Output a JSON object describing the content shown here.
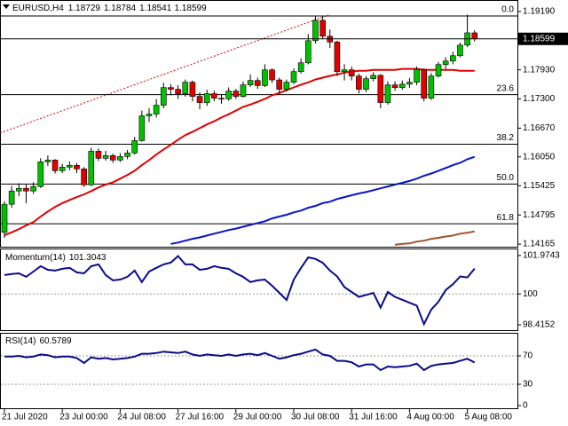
{
  "chart_data": [
    {
      "type": "candlestick",
      "title": "EURUSD,H4",
      "categories": [
        "21 Jul 2020",
        null,
        null,
        null,
        null,
        null,
        null,
        null,
        "23 Jul 00:00",
        null,
        null,
        null,
        null,
        null,
        null,
        null,
        "24 Jul 08:00",
        null,
        null,
        null,
        null,
        null,
        null,
        null,
        "27 Jul 16:00",
        null,
        null,
        null,
        null,
        null,
        null,
        null,
        "29 Jul 00:00",
        null,
        null,
        null,
        null,
        null,
        null,
        null,
        "30 Jul 08:00",
        null,
        null,
        null,
        null,
        null,
        null,
        null,
        "31 Jul 16:00",
        null,
        null,
        null,
        null,
        null,
        null,
        null,
        "4 Aug 00:00",
        null,
        null,
        null,
        null,
        null,
        null,
        null,
        "5 Aug 08:00",
        null
      ],
      "open": [
        1.1442,
        1.15026,
        1.15313,
        1.1537,
        1.15313,
        1.15409,
        1.15943,
        1.15981,
        1.15752,
        1.15828,
        1.15867,
        1.1579,
        1.15446,
        1.16172,
        1.16019,
        1.16077,
        1.15981,
        1.16058,
        1.16134,
        1.16401,
        1.16936,
        1.16974,
        1.17165,
        1.17547,
        1.17509,
        1.17414,
        1.17662,
        1.17356,
        1.17223,
        1.17414,
        1.17318,
        1.17305,
        1.17471,
        1.17356,
        1.17605,
        1.177,
        1.1759,
        1.17929,
        1.17712,
        1.17509,
        1.17662,
        1.17891,
        1.18082,
        1.1856,
        1.18999,
        1.18655,
        1.1853,
        1.17891,
        1.17929,
        1.17796,
        1.17509,
        1.17738,
        1.1781,
        1.17223,
        1.17605,
        1.17547,
        1.1762,
        1.17662,
        1.1794,
        1.17318,
        1.17796,
        1.18044,
        1.1812,
        1.18235,
        1.18464,
        1.18729
      ],
      "high": [
        1.1509,
        1.1542,
        1.1548,
        1.1545,
        1.155,
        1.1602,
        1.1608,
        1.16,
        1.159,
        1.1595,
        1.1592,
        1.1583,
        1.1625,
        1.1623,
        1.1618,
        1.1612,
        1.1613,
        1.162,
        1.1648,
        1.1705,
        1.171,
        1.173,
        1.1765,
        1.1762,
        1.176,
        1.1772,
        1.177,
        1.1745,
        1.175,
        1.1748,
        1.174,
        1.1755,
        1.1752,
        1.1768,
        1.1783,
        1.1776,
        1.1805,
        1.1796,
        1.1776,
        1.1772,
        1.1796,
        1.1818,
        1.187,
        1.19094,
        1.1908,
        1.188,
        1.1856,
        1.1805,
        1.18,
        1.1785,
        1.178,
        1.1788,
        1.1784,
        1.1768,
        1.1768,
        1.177,
        1.1775,
        1.18,
        1.1796,
        1.1786,
        1.181,
        1.182,
        1.1832,
        1.1852,
        1.1912,
        1.18784
      ],
      "low": [
        1.143,
        1.1495,
        1.152,
        1.1505,
        1.1525,
        1.1538,
        1.1585,
        1.1569,
        1.157,
        1.1576,
        1.157,
        1.154,
        1.1542,
        1.1596,
        1.1597,
        1.1592,
        1.1594,
        1.16,
        1.161,
        1.1638,
        1.168,
        1.169,
        1.171,
        1.1738,
        1.173,
        1.1735,
        1.1725,
        1.1708,
        1.1715,
        1.1725,
        1.172,
        1.1726,
        1.173,
        1.1733,
        1.1756,
        1.1752,
        1.1756,
        1.1765,
        1.1742,
        1.1746,
        1.1762,
        1.1785,
        1.1805,
        1.185,
        1.186,
        1.184,
        1.178,
        1.177,
        1.177,
        1.1742,
        1.1745,
        1.1768,
        1.171,
        1.1718,
        1.1748,
        1.175,
        1.1754,
        1.176,
        1.1725,
        1.1728,
        1.1776,
        1.1795,
        1.1805,
        1.182,
        1.1842,
        1.18541
      ],
      "close": [
        1.15026,
        1.15313,
        1.1537,
        1.15313,
        1.15409,
        1.15943,
        1.15981,
        1.15752,
        1.15828,
        1.15867,
        1.1579,
        1.15446,
        1.16172,
        1.16019,
        1.16077,
        1.15981,
        1.16058,
        1.16134,
        1.16401,
        1.16936,
        1.16974,
        1.17165,
        1.17547,
        1.17509,
        1.17414,
        1.17662,
        1.17356,
        1.17223,
        1.17414,
        1.17318,
        1.17305,
        1.17471,
        1.17356,
        1.17605,
        1.177,
        1.1759,
        1.17929,
        1.17712,
        1.17509,
        1.17662,
        1.17891,
        1.18082,
        1.1856,
        1.18999,
        1.18655,
        1.1853,
        1.17891,
        1.17929,
        1.17796,
        1.17509,
        1.17738,
        1.1781,
        1.17223,
        1.17605,
        1.17547,
        1.1762,
        1.17662,
        1.1794,
        1.17318,
        1.17796,
        1.18044,
        1.1812,
        1.18235,
        1.18464,
        1.18729,
        1.18599
      ],
      "bull_color": "#00c000",
      "bear_color": "#e00000",
      "wick_color": "#000000",
      "series": [
        {
          "color": "#e00000",
          "values": [
            1.1436,
            1.1442,
            1.1449,
            1.1457,
            1.1464,
            1.1476,
            1.1487,
            1.1497,
            1.1505,
            1.1512,
            1.1518,
            1.1524,
            1.1531,
            1.1539,
            1.1545,
            1.155,
            1.1558,
            1.1566,
            1.1575,
            1.1587,
            1.1598,
            1.161,
            1.1621,
            1.1631,
            1.1642,
            1.1652,
            1.1659,
            1.1667,
            1.1675,
            1.1682,
            1.169,
            1.1697,
            1.1705,
            1.1713,
            1.1718,
            1.1724,
            1.173,
            1.1738,
            1.1743,
            1.1749,
            1.1755,
            1.1761,
            1.1766,
            1.1772,
            1.1776,
            1.178,
            1.1783,
            1.1787,
            1.1789,
            1.1791,
            1.1791,
            1.1793,
            1.1793,
            1.1793,
            1.1793,
            1.1795,
            1.1795,
            1.1795,
            1.1793,
            1.1793,
            1.1793,
            1.1793,
            1.1793,
            1.1791,
            1.1791,
            1.1791
          ]
        },
        {
          "color": "#0a14c8",
          "values": [
            null,
            null,
            null,
            null,
            null,
            null,
            null,
            null,
            null,
            null,
            null,
            null,
            null,
            null,
            null,
            null,
            null,
            null,
            null,
            null,
            null,
            null,
            null,
            1.1417,
            1.142,
            1.1424,
            1.1428,
            1.1431,
            1.1435,
            1.1439,
            1.1443,
            1.1447,
            1.145,
            1.1454,
            1.1458,
            1.1462,
            1.1466,
            1.1472,
            1.1476,
            1.148,
            1.1485,
            1.1489,
            1.1495,
            1.1499,
            1.1505,
            1.1508,
            1.1514,
            1.1518,
            1.1522,
            1.1526,
            1.1529,
            1.1533,
            1.1537,
            1.1541,
            1.1545,
            1.1549,
            1.1553,
            1.1558,
            1.1564,
            1.1569,
            1.1575,
            1.1581,
            1.1587,
            1.1592,
            1.16,
            1.1605
          ]
        },
        {
          "color": "#a0522d",
          "values": [
            null,
            null,
            null,
            null,
            null,
            null,
            null,
            null,
            null,
            null,
            null,
            null,
            null,
            null,
            null,
            null,
            null,
            null,
            null,
            null,
            null,
            null,
            null,
            null,
            null,
            null,
            null,
            null,
            null,
            null,
            null,
            null,
            null,
            null,
            null,
            null,
            null,
            null,
            null,
            null,
            null,
            null,
            null,
            null,
            null,
            null,
            null,
            null,
            null,
            null,
            null,
            null,
            null,
            null,
            1.1415,
            1.1417,
            1.1418,
            1.1422,
            1.1424,
            1.1428,
            1.143,
            1.1433,
            1.1435,
            1.1439,
            1.1441,
            1.1444
          ]
        }
      ],
      "fib_levels": [
        {
          "value": 1.19094,
          "label": "0.0"
        },
        {
          "value": 1.17394,
          "label": "23.6"
        },
        {
          "value": 1.16324,
          "label": "38.2"
        },
        {
          "value": 1.15464,
          "label": "50.0"
        },
        {
          "value": 1.14604,
          "label": "61.8"
        }
      ],
      "ylim": [
        1.14109,
        1.19419
      ],
      "yticks": [
        {
          "value": 1.1919,
          "label": "1.19190"
        },
        {
          "value": 1.1793,
          "label": "1.17930"
        },
        {
          "value": 1.173,
          "label": "1.17300"
        },
        {
          "value": 1.1667,
          "label": "1.16670"
        },
        {
          "value": 1.1605,
          "label": "1.16050"
        },
        1.15425,
        1.14795,
        1.14165
      ]
    },
    {
      "type": "line",
      "title": "Momentum(14)",
      "color": "#0a0a8c",
      "values": [
        100.97,
        101.02,
        101.06,
        100.88,
        101.15,
        101.43,
        101.24,
        101.2,
        101.29,
        101.34,
        101.11,
        101.06,
        101.43,
        101.52,
        100.97,
        100.7,
        100.74,
        100.88,
        101.2,
        100.61,
        101.15,
        101.34,
        101.52,
        101.61,
        101.95,
        101.52,
        101.52,
        101.24,
        101.29,
        101.43,
        101.34,
        101.29,
        101.06,
        100.88,
        100.61,
        100.7,
        100.74,
        100.42,
        100.06,
        99.69,
        100.74,
        101.34,
        101.88,
        101.8,
        101.6,
        101.2,
        100.9,
        100.35,
        100.1,
        99.85,
        99.95,
        100.05,
        99.3,
        100.1,
        99.85,
        99.7,
        99.55,
        99.4,
        98.45,
        99.2,
        99.6,
        100.2,
        100.5,
        100.9,
        100.85,
        101.3043
      ],
      "levels": [
        100
      ],
      "ylim": [
        98.14,
        102.29
      ],
      "yticks": [
        101.9743,
        100,
        98.4152
      ]
    },
    {
      "type": "line",
      "title": "RSI(14)",
      "color": "#0a0a8c",
      "values": [
        69,
        69,
        70,
        68,
        69,
        72,
        71,
        68,
        69,
        69,
        67,
        60,
        68,
        66,
        67,
        65,
        66,
        67,
        69,
        73,
        73,
        74,
        76,
        75,
        74,
        76,
        72,
        70,
        72,
        71,
        70,
        72,
        70,
        72,
        73,
        71,
        74,
        70,
        66,
        68,
        71,
        73,
        76,
        79,
        72,
        70,
        63,
        63,
        61,
        55,
        58,
        58,
        50,
        55,
        54,
        55,
        56,
        59,
        50,
        56,
        58,
        59,
        60,
        63,
        66,
        60.5789
      ],
      "levels": [
        70,
        30
      ],
      "ylim": [
        -3.75,
        101.25
      ],
      "yticks": [
        70,
        30,
        0
      ]
    }
  ]
}
